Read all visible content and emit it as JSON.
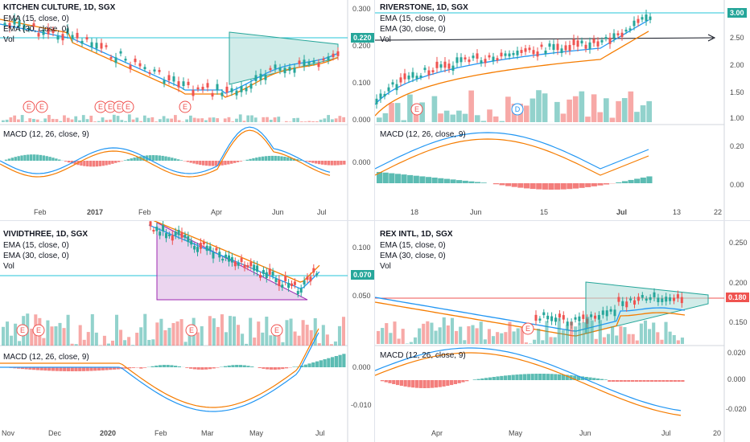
{
  "colors": {
    "up": "#26a69a",
    "down": "#ef5350",
    "ema15": "#2196f3",
    "ema30": "#f57c00",
    "triangle_fill": "#b2dfdb",
    "triangle_stroke": "#26a69a",
    "wedge_fill": "#e1bee7",
    "wedge_stroke": "#9c27b0",
    "price_line": "#26c6da",
    "hline_red": "#ef5350"
  },
  "panels": [
    {
      "id": "kitchen",
      "title": "KITCHEN CULTURE, 1D, SGX",
      "ema15": "EMA (15, close, 0)",
      "ema30": "EMA (30, close, 0)",
      "vol": "Vol",
      "macd": "MACD (12, 26, close, 9)",
      "price_tag": "0.220",
      "price_ticks": [
        "0.300",
        "0.200",
        "0.100",
        "0.000"
      ],
      "macd_ticks": [
        "0.000"
      ],
      "time_ticks": [
        "Feb",
        "2017",
        "Feb",
        "Apr",
        "Jun",
        "Jul"
      ],
      "event_markers": [
        "E",
        "E",
        "E",
        "E",
        "E",
        "E",
        "E"
      ]
    },
    {
      "id": "riverstone",
      "title": "RIVERSTONE, 1D, SGX",
      "ema15": "EMA (15, close, 0)",
      "ema30": "EMA (30, close, 0)",
      "vol": "Vol",
      "macd": "MACD (12, 26, close, 9)",
      "price_tag": "3.00",
      "price_ticks": [
        "3.00",
        "2.50",
        "2.00",
        "1.50",
        "1.00"
      ],
      "macd_ticks": [
        "0.20",
        "0.00"
      ],
      "time_ticks": [
        "18",
        "Jun",
        "15",
        "Jul",
        "13",
        "22"
      ],
      "event_markers": [
        "E",
        "D"
      ]
    },
    {
      "id": "vividthree",
      "title": "VIVIDTHREE, 1D, SGX",
      "ema15": "EMA (15, close, 0)",
      "ema30": "EMA (30, close, 0)",
      "vol": "Vol",
      "macd": "MACD (12, 26, close, 9)",
      "price_tag": "0.070",
      "price_ticks": [
        "0.100",
        "0.050"
      ],
      "macd_ticks": [
        "0.000",
        "-0.010"
      ],
      "time_ticks": [
        "Nov",
        "Dec",
        "2020",
        "Feb",
        "Mar",
        "May",
        "Jul"
      ],
      "event_markers": [
        "E",
        "E",
        "E",
        "E"
      ]
    },
    {
      "id": "rex",
      "title": "REX INTL, 1D, SGX",
      "ema15": "EMA (15, close, 0)",
      "ema30": "EMA (30, close, 0)",
      "vol": "Vol",
      "macd": "MACD (12, 26, close, 9)",
      "price_tag": "0.180",
      "price_ticks": [
        "0.250",
        "0.200",
        "0.150"
      ],
      "macd_ticks": [
        "0.020",
        "0.000",
        "-0.020"
      ],
      "time_ticks": [
        "Apr",
        "May",
        "Jun",
        "Jul",
        "20"
      ],
      "event_markers": [
        "E"
      ]
    }
  ]
}
